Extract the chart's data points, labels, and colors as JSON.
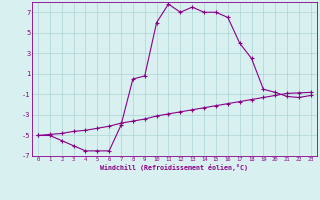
{
  "title": "",
  "xlabel": "Windchill (Refroidissement éolien,°C)",
  "background_color": "#d8f0f0",
  "grid_color": "#aed4d4",
  "line_color": "#880088",
  "hours": [
    0,
    1,
    2,
    3,
    4,
    5,
    6,
    7,
    8,
    9,
    10,
    11,
    12,
    13,
    14,
    15,
    16,
    17,
    18,
    19,
    20,
    21,
    22,
    23
  ],
  "temp_curve": [
    -5,
    -5,
    -5.5,
    -6,
    -6.5,
    -6.5,
    -6.5,
    -4,
    0.5,
    0.8,
    6,
    7.8,
    7,
    7.5,
    7,
    7,
    6.5,
    4,
    2.5,
    -0.5,
    -0.8,
    -1.2,
    -1.3,
    -1.1
  ],
  "ref_line": [
    -5,
    -4.9,
    -4.8,
    -4.6,
    -4.5,
    -4.3,
    -4.1,
    -3.8,
    -3.6,
    -3.4,
    -3.1,
    -2.9,
    -2.7,
    -2.5,
    -2.3,
    -2.1,
    -1.9,
    -1.7,
    -1.5,
    -1.3,
    -1.1,
    -0.9,
    -0.85,
    -0.8
  ],
  "ylim": [
    -7,
    8
  ],
  "yticks": [
    -7,
    -5,
    -3,
    -1,
    1,
    3,
    5,
    7
  ],
  "xlim": [
    -0.5,
    23.5
  ],
  "xticks": [
    0,
    1,
    2,
    3,
    4,
    5,
    6,
    7,
    8,
    9,
    10,
    11,
    12,
    13,
    14,
    15,
    16,
    17,
    18,
    19,
    20,
    21,
    22,
    23
  ],
  "markersize": 3,
  "linewidth": 0.8
}
